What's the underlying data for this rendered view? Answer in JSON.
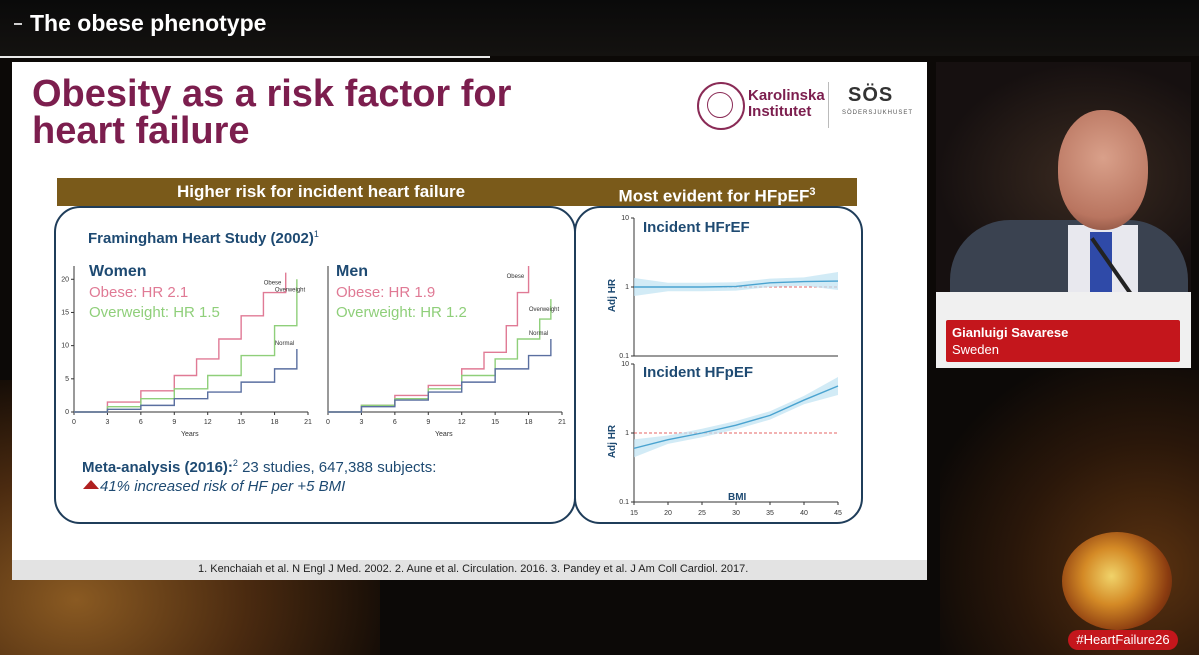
{
  "topbar": {
    "title": "The obese phenotype"
  },
  "slide": {
    "title_line1": "Obesity as a risk factor for",
    "title_line2": "heart failure",
    "logo_ki_line1": "Karolinska",
    "logo_ki_line2": "Institutet",
    "logo_sos": "SÖS",
    "logo_sos_sub": "SÖDERSJUKHUSET",
    "left_header": "Higher risk for incident heart failure",
    "right_header": "Most evident for HFpEF",
    "right_header_sup": "3",
    "framingham_title": "Framingham Heart Study (2002)",
    "framingham_sup": "1",
    "women": {
      "head": "Women",
      "obese": "Obese: HR 2.1",
      "overweight": "Overweight: HR 1.5"
    },
    "men": {
      "head": "Men",
      "obese": "Obese: HR 1.9",
      "overweight": "Overweight: HR 1.2"
    },
    "meta_bold": "Meta-analysis (2016):",
    "meta_sup": "2",
    "meta_rest": " 23 studies, 647,388 subjects:",
    "meta_line2": "41% increased risk of HF per +5 BMI",
    "refs": "1. Kenchaiah et al. N Engl J Med. 2002. 2. Aune et al. Circulation. 2016. 3. Pandey et al. J Am Coll Cardiol. 2017.",
    "hfref_label": "Incident HFrEF",
    "hfpef_label": "Incident HFpEF",
    "adj_hr": "Adj HR",
    "bmi_label": "BMI"
  },
  "speaker": {
    "name": "Gianluigi Savarese",
    "country": "Sweden"
  },
  "hashtag": "#HeartFailure26",
  "colors": {
    "title": "#7c1e4e",
    "header_bar": "#7a5a1a",
    "panel_border": "#1f3d5a",
    "obese": "#e07a95",
    "overweight": "#8fcf7a",
    "normal": "#5a6fa0",
    "name_tag": "#c4161c"
  },
  "chart_data": [
    {
      "type": "line",
      "title": "Women",
      "xlabel": "Years",
      "x_ticks": [
        0,
        3,
        6,
        9,
        12,
        15,
        18,
        21
      ],
      "y_ticks": [
        0,
        5,
        10,
        15,
        20
      ],
      "xlim": [
        0,
        21
      ],
      "ylim": [
        0,
        22
      ],
      "series": [
        {
          "name": "Obese",
          "x": [
            0,
            3,
            6,
            9,
            11,
            13,
            15,
            17,
            19
          ],
          "values": [
            0,
            1.5,
            3.2,
            5.5,
            8,
            11,
            14.5,
            18,
            21
          ]
        },
        {
          "name": "Overweight",
          "x": [
            0,
            3,
            6,
            9,
            12,
            15,
            18,
            20
          ],
          "values": [
            0,
            0.8,
            2,
            3.5,
            5.5,
            8.5,
            13,
            20
          ]
        },
        {
          "name": "Normal",
          "x": [
            0,
            3,
            6,
            9,
            12,
            15,
            18,
            20
          ],
          "values": [
            0,
            0.4,
            1,
            2,
            3,
            4.5,
            6.5,
            9.5
          ]
        }
      ]
    },
    {
      "type": "line",
      "title": "Men",
      "xlabel": "Years",
      "x_ticks": [
        0,
        3,
        6,
        9,
        12,
        15,
        18,
        21
      ],
      "y_ticks": [],
      "xlim": [
        0,
        21
      ],
      "ylim": [
        0,
        22
      ],
      "series": [
        {
          "name": "Obese",
          "x": [
            0,
            3,
            6,
            9,
            12,
            14,
            16,
            17,
            18
          ],
          "values": [
            0,
            1,
            2.5,
            4,
            6.5,
            9,
            13,
            18,
            22
          ]
        },
        {
          "name": "Overweight",
          "x": [
            0,
            3,
            6,
            9,
            12,
            15,
            17,
            19,
            20
          ],
          "values": [
            0,
            1,
            2,
            3.5,
            5.5,
            8,
            11,
            14,
            17
          ]
        },
        {
          "name": "Normal",
          "x": [
            0,
            3,
            6,
            9,
            12,
            15,
            18,
            20
          ],
          "values": [
            0,
            0.8,
            1.8,
            3,
            4.5,
            6.5,
            8.5,
            11
          ]
        }
      ]
    },
    {
      "type": "line",
      "title": "Incident HFrEF",
      "ylabel": "Adj HR",
      "y_scale": "log",
      "y_ticks": [
        "0.1",
        "1",
        "10"
      ],
      "xlim": [
        15,
        45
      ],
      "x": [
        15,
        20,
        25,
        30,
        35,
        40,
        45
      ],
      "values": [
        1.0,
        1.0,
        1.0,
        1.02,
        1.15,
        1.2,
        1.22
      ]
    },
    {
      "type": "line",
      "title": "Incident HFpEF",
      "xlabel": "BMI",
      "ylabel": "Adj HR",
      "y_scale": "log",
      "y_ticks": [
        "0.1",
        "1",
        "10"
      ],
      "x_ticks": [
        15,
        20,
        25,
        30,
        35,
        40,
        45
      ],
      "xlim": [
        15,
        45
      ],
      "x": [
        15,
        20,
        25,
        30,
        35,
        40,
        45
      ],
      "values": [
        0.6,
        0.8,
        1.0,
        1.3,
        1.8,
        3.0,
        4.8
      ]
    }
  ]
}
